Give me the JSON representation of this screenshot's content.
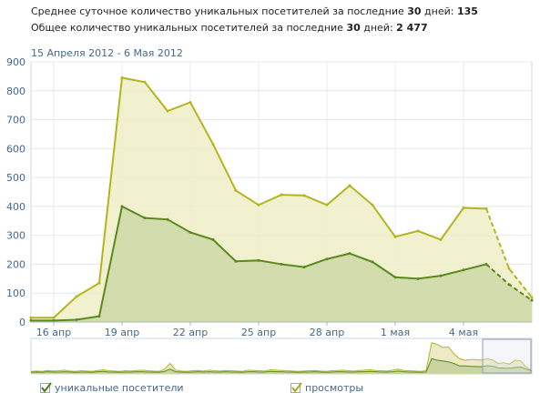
{
  "stats": {
    "avg_prefix": "Среднее суточное количество уникальных посетителей за последние ",
    "avg_days": "30",
    "avg_mid": " дней: ",
    "avg_value": "135",
    "total_prefix": "Общее количество уникальных посетителей за последние ",
    "total_days": "30",
    "total_mid": " дней: ",
    "total_value": "2 477"
  },
  "date_range": "15 Апреля 2012 - 6 Мая 2012",
  "legend": {
    "unique_label": "уникальные посетители",
    "views_label": "просмотры"
  },
  "colors": {
    "unique": "#5a8a1e",
    "views": "#b4b41e",
    "grid": "#e4e8ee",
    "axis_text": "#45688e"
  },
  "chart_data": {
    "type": "area",
    "ylim": [
      0,
      900
    ],
    "yticks": [
      0,
      100,
      200,
      300,
      400,
      500,
      600,
      700,
      800,
      900
    ],
    "x_tick_labels": [
      "16 апр",
      "19 апр",
      "22 апр",
      "25 апр",
      "28 апр",
      "1 мая",
      "4 мая"
    ],
    "x_tick_index": [
      1,
      4,
      7,
      10,
      13,
      16,
      19
    ],
    "grid": true,
    "series": [
      {
        "name": "просмотры",
        "values": [
          15,
          15,
          88,
          135,
          845,
          830,
          730,
          760,
          615,
          455,
          405,
          440,
          438,
          405,
          472,
          405,
          295,
          315,
          285,
          395,
          392,
          185,
          85
        ]
      },
      {
        "name": "уникальные посетители",
        "values": [
          5,
          5,
          8,
          20,
          400,
          360,
          355,
          310,
          285,
          210,
          213,
          200,
          190,
          218,
          237,
          208,
          155,
          150,
          160,
          180,
          200,
          130,
          75
        ]
      }
    ]
  },
  "overview": {
    "views": [
      5,
      6,
      5,
      8,
      6,
      7,
      9,
      6,
      5,
      7,
      6,
      5,
      8,
      10,
      7,
      6,
      5,
      7,
      6,
      8,
      9,
      7,
      6,
      5,
      12,
      30,
      9,
      6,
      5,
      7,
      8,
      6,
      9,
      7,
      6,
      8,
      7,
      6,
      5,
      9,
      8,
      7,
      6,
      10,
      9,
      8,
      7,
      6,
      5,
      6,
      7,
      8,
      6,
      5,
      7,
      8,
      9,
      7,
      6,
      8,
      9,
      10,
      8,
      7,
      6,
      9,
      12,
      8,
      7,
      6,
      5,
      7,
      95,
      90,
      80,
      82,
      60,
      45,
      40,
      42,
      42,
      40,
      45,
      40,
      30,
      32,
      28,
      40,
      38,
      18,
      8
    ],
    "unique": [
      2,
      3,
      2,
      4,
      3,
      3,
      4,
      3,
      2,
      3,
      3,
      2,
      4,
      5,
      3,
      3,
      2,
      3,
      3,
      4,
      4,
      3,
      3,
      2,
      5,
      12,
      4,
      3,
      2,
      3,
      4,
      3,
      4,
      3,
      3,
      4,
      3,
      3,
      2,
      4,
      4,
      3,
      3,
      5,
      4,
      4,
      3,
      3,
      2,
      3,
      3,
      4,
      3,
      2,
      3,
      4,
      4,
      3,
      3,
      4,
      4,
      5,
      4,
      3,
      3,
      4,
      6,
      4,
      3,
      3,
      2,
      3,
      45,
      40,
      38,
      35,
      30,
      22,
      22,
      21,
      20,
      20,
      23,
      21,
      16,
      15,
      15,
      17,
      19,
      12,
      7
    ]
  }
}
